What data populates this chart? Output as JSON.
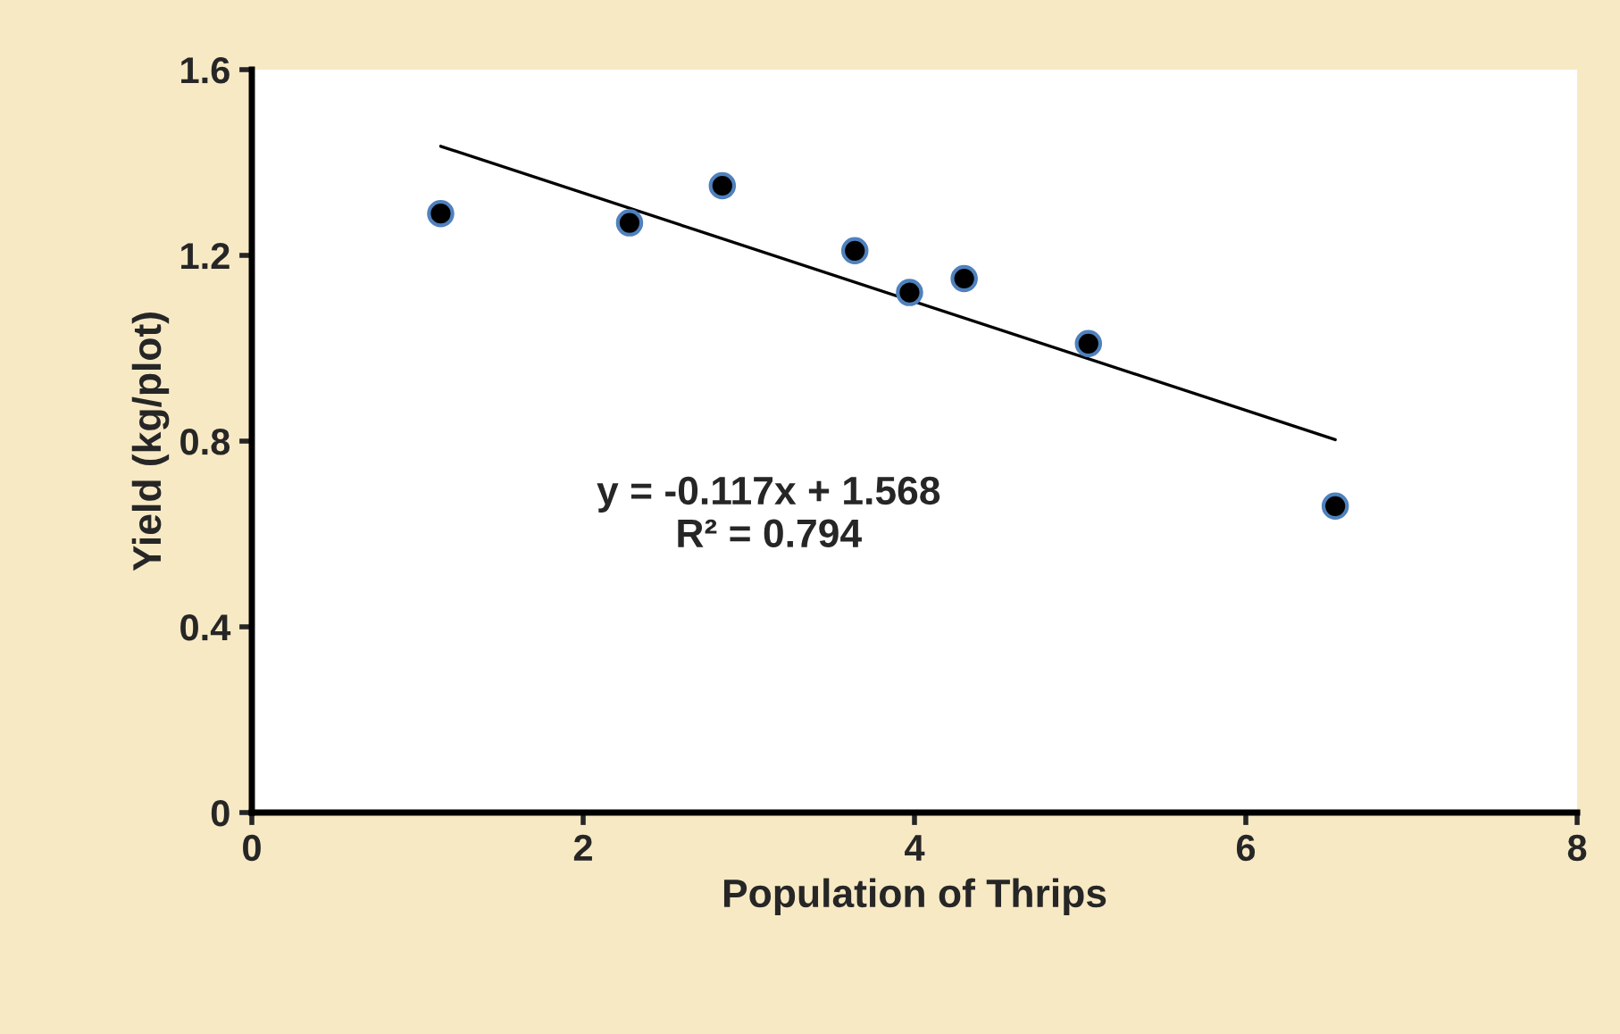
{
  "chart_data": {
    "type": "scatter",
    "xlabel": "Population of Thrips",
    "ylabel": "Yield (kg/plot)",
    "xlim": [
      0,
      8
    ],
    "xticks": [
      0,
      2,
      4,
      6,
      8
    ],
    "ylim": [
      0,
      1.6
    ],
    "yticks": [
      0,
      0.4,
      0.8,
      1.2,
      1.6
    ],
    "grid": false,
    "legend": false,
    "series": [
      {
        "marker": "circle",
        "color": "#000000",
        "x": [
          1.14,
          2.28,
          2.84,
          3.64,
          3.97,
          4.3,
          5.05,
          6.54
        ],
        "values": [
          1.29,
          1.27,
          1.35,
          1.21,
          1.12,
          1.15,
          1.01,
          0.66
        ]
      },
      {
        "type": "line",
        "color": "#000000",
        "line_style": "solid",
        "x": [
          1.14,
          6.54
        ],
        "values": [
          1.435,
          0.803
        ]
      }
    ],
    "annotations": [
      "y = -0.117x + 1.568\nR² = 0.794"
    ]
  }
}
